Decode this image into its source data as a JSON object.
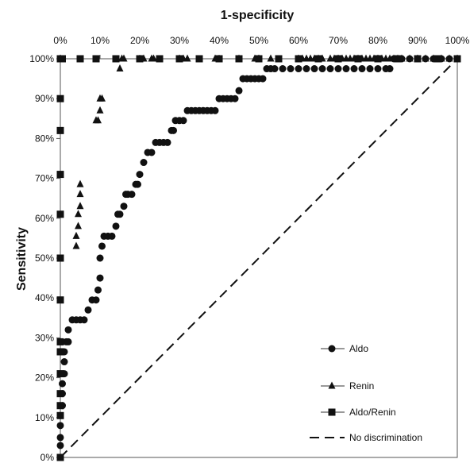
{
  "chart_data": {
    "type": "line",
    "xlabel": "1-specificity",
    "ylabel": "Sensitivity",
    "xlim": [
      0,
      100
    ],
    "ylim": [
      0,
      100
    ],
    "x_ticks": [
      "0%",
      "10%",
      "20%",
      "30%",
      "40%",
      "50%",
      "60%",
      "70%",
      "80%",
      "90%",
      "100%"
    ],
    "y_ticks": [
      "0%",
      "10%",
      "20%",
      "30%",
      "40%",
      "50%",
      "60%",
      "70%",
      "80%",
      "90%",
      "100%"
    ],
    "grid": false,
    "legend_position": "bottom-right",
    "series": [
      {
        "name": "Aldo",
        "marker": "circle",
        "x": [
          0,
          0,
          0,
          0,
          0,
          0.5,
          0.5,
          0.5,
          1,
          1,
          1,
          1.5,
          2,
          2,
          3,
          4,
          5,
          6,
          7,
          8,
          9,
          9.5,
          10,
          10,
          10.5,
          11,
          12,
          13,
          14,
          14.5,
          15,
          16,
          16.5,
          17,
          18,
          19,
          19.5,
          20,
          21,
          22,
          23,
          24,
          25,
          26,
          27,
          28,
          28.5,
          29,
          30,
          31,
          32,
          33,
          34,
          35,
          36,
          37,
          38,
          39,
          40,
          41,
          42,
          43,
          44,
          45,
          46,
          47,
          48,
          49,
          50,
          51,
          52,
          53,
          54,
          56,
          58,
          60,
          62,
          64,
          66,
          68,
          70,
          72,
          74,
          76,
          78,
          80,
          82,
          83,
          84,
          86,
          88,
          90,
          92,
          94,
          96,
          98,
          100
        ],
        "y": [
          0,
          3,
          5,
          8,
          10.5,
          13,
          16,
          18.5,
          21,
          24,
          26.5,
          29,
          29,
          32,
          34.5,
          34.5,
          34.5,
          34.5,
          37,
          39.5,
          39.5,
          42,
          45,
          50,
          53,
          55.5,
          55.5,
          55.5,
          58,
          61,
          61,
          63,
          66,
          66,
          66,
          68.5,
          68.5,
          71,
          74,
          76.5,
          76.5,
          79,
          79,
          79,
          79,
          82,
          82,
          84.5,
          84.5,
          84.5,
          87,
          87,
          87,
          87,
          87,
          87,
          87,
          87,
          90,
          90,
          90,
          90,
          90,
          92,
          95,
          95,
          95,
          95,
          95,
          95,
          97.5,
          97.5,
          97.5,
          97.5,
          97.5,
          97.5,
          97.5,
          97.5,
          97.5,
          97.5,
          97.5,
          97.5,
          97.5,
          97.5,
          97.5,
          97.5,
          97.5,
          97.5,
          100,
          100,
          100,
          100,
          100,
          100,
          100,
          100,
          100
        ]
      },
      {
        "name": "Renin",
        "marker": "triangle",
        "x": [
          0,
          4,
          4,
          4.5,
          4.5,
          5,
          5,
          5,
          9,
          9.5,
          10,
          10,
          10.5,
          15,
          15.5,
          16,
          21,
          23,
          23.5,
          30,
          31,
          32,
          39,
          45,
          49,
          50,
          53,
          60,
          61,
          62,
          63,
          64,
          65,
          66,
          68,
          69,
          70,
          71,
          72,
          73,
          74,
          75,
          76,
          77,
          78,
          79,
          80,
          81,
          82,
          83,
          84,
          85,
          86,
          88,
          90,
          92,
          94,
          96,
          98,
          100
        ],
        "y": [
          100,
          53,
          55.5,
          58,
          61,
          63,
          66,
          68.5,
          84.5,
          84.5,
          87,
          90,
          90,
          97.5,
          100,
          100,
          100,
          100,
          100,
          100,
          100,
          100,
          100,
          100,
          100,
          100,
          100,
          100,
          100,
          100,
          100,
          100,
          100,
          100,
          100,
          100,
          100,
          100,
          100,
          100,
          100,
          100,
          100,
          100,
          100,
          100,
          100,
          100,
          100,
          100,
          100,
          100,
          100,
          100,
          100,
          100,
          100,
          100,
          100,
          100
        ]
      },
      {
        "name": "Aldo/Renin",
        "marker": "square",
        "x": [
          0,
          0,
          0,
          0,
          0,
          0,
          0,
          0,
          0,
          0,
          0,
          0,
          0,
          0,
          0,
          0,
          0,
          0.5,
          5,
          9,
          14,
          20,
          25,
          30,
          35,
          40,
          45,
          50,
          55,
          60,
          65,
          70,
          75,
          80,
          85,
          90,
          95,
          100
        ],
        "y": [
          0,
          10.5,
          13,
          16,
          21,
          26.5,
          29,
          39.5,
          50,
          61,
          71,
          82,
          90,
          100,
          100,
          100,
          100,
          100,
          100,
          100,
          100,
          100,
          100,
          100,
          100,
          100,
          100,
          100,
          100,
          100,
          100,
          100,
          100,
          100,
          100,
          100,
          100,
          100
        ]
      },
      {
        "name": "No discrimination",
        "marker": "none",
        "dash": true,
        "x": [
          0,
          100
        ],
        "y": [
          0,
          100
        ]
      }
    ]
  }
}
